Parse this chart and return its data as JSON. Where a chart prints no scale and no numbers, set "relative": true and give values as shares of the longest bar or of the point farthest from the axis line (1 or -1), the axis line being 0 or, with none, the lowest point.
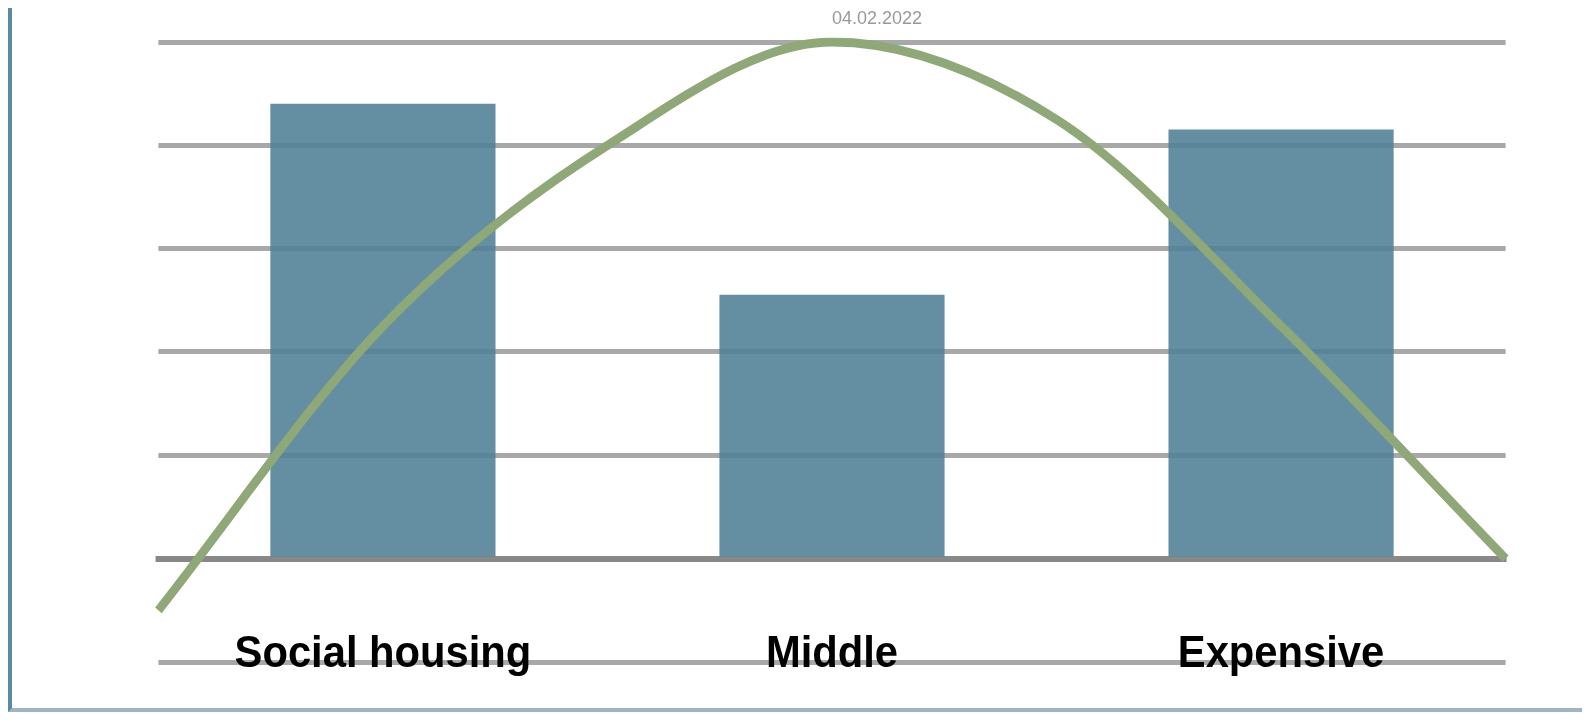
{
  "chart_data": {
    "type": "bar",
    "relative": true,
    "grid": "y",
    "annotations": [
      "04.02.2022"
    ],
    "categories": [
      null,
      "Social housing",
      null,
      "Middle",
      null,
      "Expensive",
      null
    ],
    "series": [
      {
        "type": "bar",
        "color": "#4f7f95",
        "values": [
          null,
          0.88,
          null,
          0.51,
          null,
          0.83,
          null
        ]
      },
      {
        "type": "line",
        "color": "#8fa878",
        "values": [
          -0.1,
          0.45,
          0.8,
          1.0,
          0.85,
          0.45,
          0.0
        ]
      }
    ]
  }
}
